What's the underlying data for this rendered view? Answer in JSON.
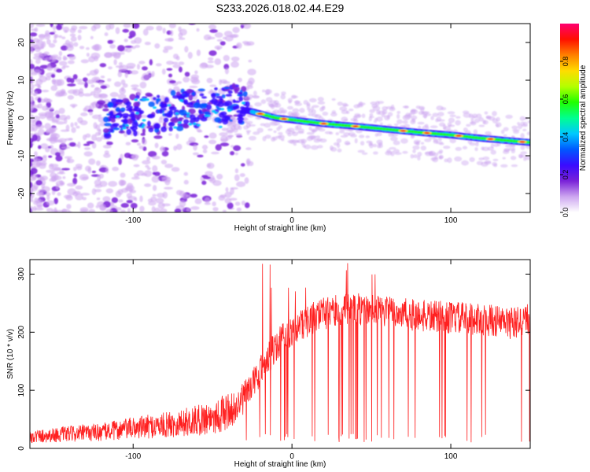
{
  "title": "S233.2026.018.02.44.E29",
  "chart_data": [
    {
      "type": "heatmap",
      "xlabel": "Height of straight line (km)",
      "ylabel": "Frequency (Hz)",
      "xlim": [
        -165,
        150
      ],
      "ylim": [
        -25,
        25
      ],
      "xticks": [
        -100,
        0,
        100
      ],
      "yticks": [
        -20,
        -10,
        0,
        10,
        20
      ],
      "colorbar": {
        "label": "Normalized spectral amplitude",
        "range": [
          0,
          1
        ],
        "ticks": [
          "0.0",
          "0.2",
          "0.4",
          "0.6",
          "0.8"
        ],
        "colors": [
          "#ffffff",
          "#cda6f0",
          "#7a22d8",
          "#3a0bff",
          "#0058ff",
          "#00c8ff",
          "#00ff90",
          "#20ff00",
          "#b4ff00",
          "#ffdc00",
          "#ff8000",
          "#ff1000",
          "#ff0070"
        ]
      },
      "ridge": {
        "x": [
          -28,
          -10,
          0,
          10,
          20,
          40,
          60,
          80,
          100,
          120,
          150
        ],
        "freq": [
          2,
          0,
          -0.5,
          -1,
          -1.5,
          -2.2,
          -3,
          -3.8,
          -4.5,
          -5.4,
          -6.5
        ]
      }
    },
    {
      "type": "line",
      "xlabel": "Height of straight line (km)",
      "ylabel": "SNR (10 * v/v)",
      "xlim": [
        -165,
        150
      ],
      "ylim": [
        0,
        325
      ],
      "xticks": [
        -100,
        0,
        100
      ],
      "yticks": [
        0,
        100,
        200,
        300
      ],
      "color": "#ff2020",
      "trend": {
        "x": [
          -165,
          -140,
          -120,
          -100,
          -80,
          -60,
          -45,
          -35,
          -28,
          -20,
          -10,
          0,
          10,
          20,
          30,
          40,
          50,
          60,
          80,
          100,
          120,
          140,
          150
        ],
        "y": [
          20,
          25,
          28,
          35,
          40,
          48,
          58,
          70,
          95,
          135,
          175,
          205,
          220,
          232,
          238,
          240,
          238,
          235,
          228,
          225,
          222,
          215,
          225
        ]
      }
    }
  ]
}
